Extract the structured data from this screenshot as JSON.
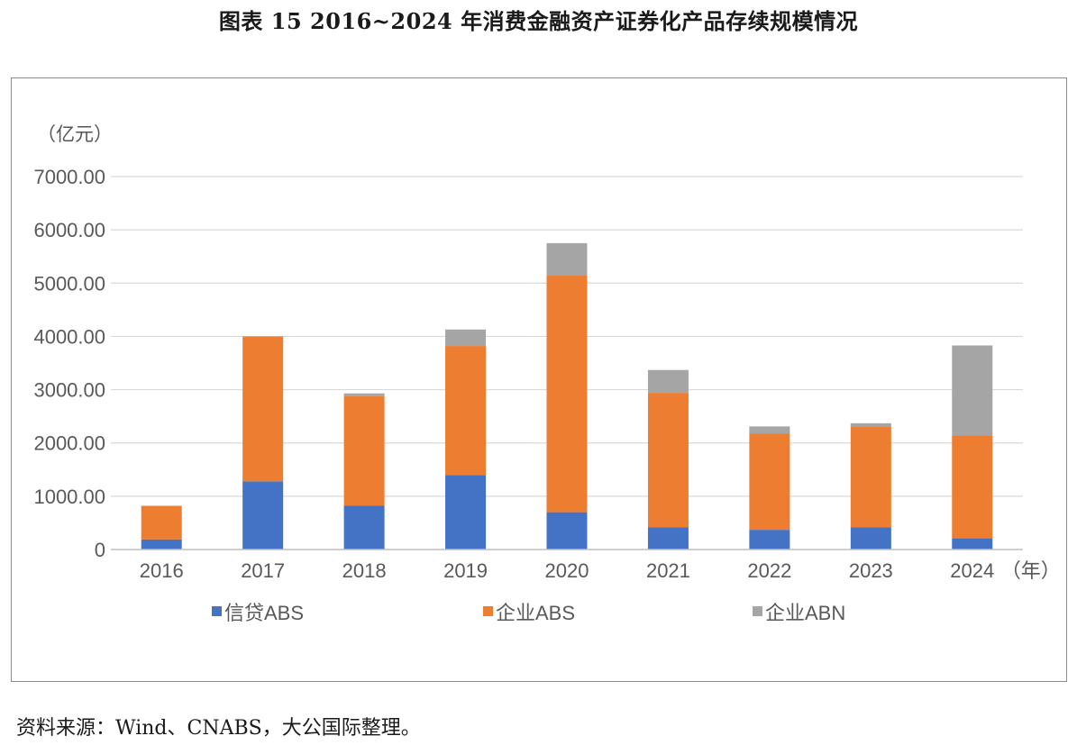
{
  "figure": {
    "title": "图表 15  2016~2024 年消费金融资产证券化产品存续规模情况",
    "source": "资料来源：Wind、CNABS，大公国际整理。"
  },
  "chart_data": {
    "type": "bar",
    "stacked": true,
    "unit_label": "（亿元）",
    "x_unit_label": "（年）",
    "categories": [
      "2016",
      "2017",
      "2018",
      "2019",
      "2020",
      "2021",
      "2022",
      "2023",
      "2024"
    ],
    "series": [
      {
        "name": "信贷ABS",
        "color": "#4472c4",
        "values": [
          190,
          1280,
          820,
          1400,
          700,
          420,
          370,
          420,
          210
        ]
      },
      {
        "name": "企业ABS",
        "color": "#ed7d31",
        "values": [
          630,
          2720,
          2060,
          2420,
          4440,
          2520,
          1810,
          1890,
          1930
        ]
      },
      {
        "name": "企业ABN",
        "color": "#a5a5a5",
        "values": [
          0,
          0,
          50,
          310,
          610,
          430,
          130,
          60,
          1690
        ]
      }
    ],
    "y_ticks": [
      "0",
      "1000.00",
      "2000.00",
      "3000.00",
      "4000.00",
      "5000.00",
      "6000.00",
      "7000.00"
    ],
    "ylim": [
      0,
      7000
    ],
    "grid": true,
    "legend_position": "bottom"
  }
}
